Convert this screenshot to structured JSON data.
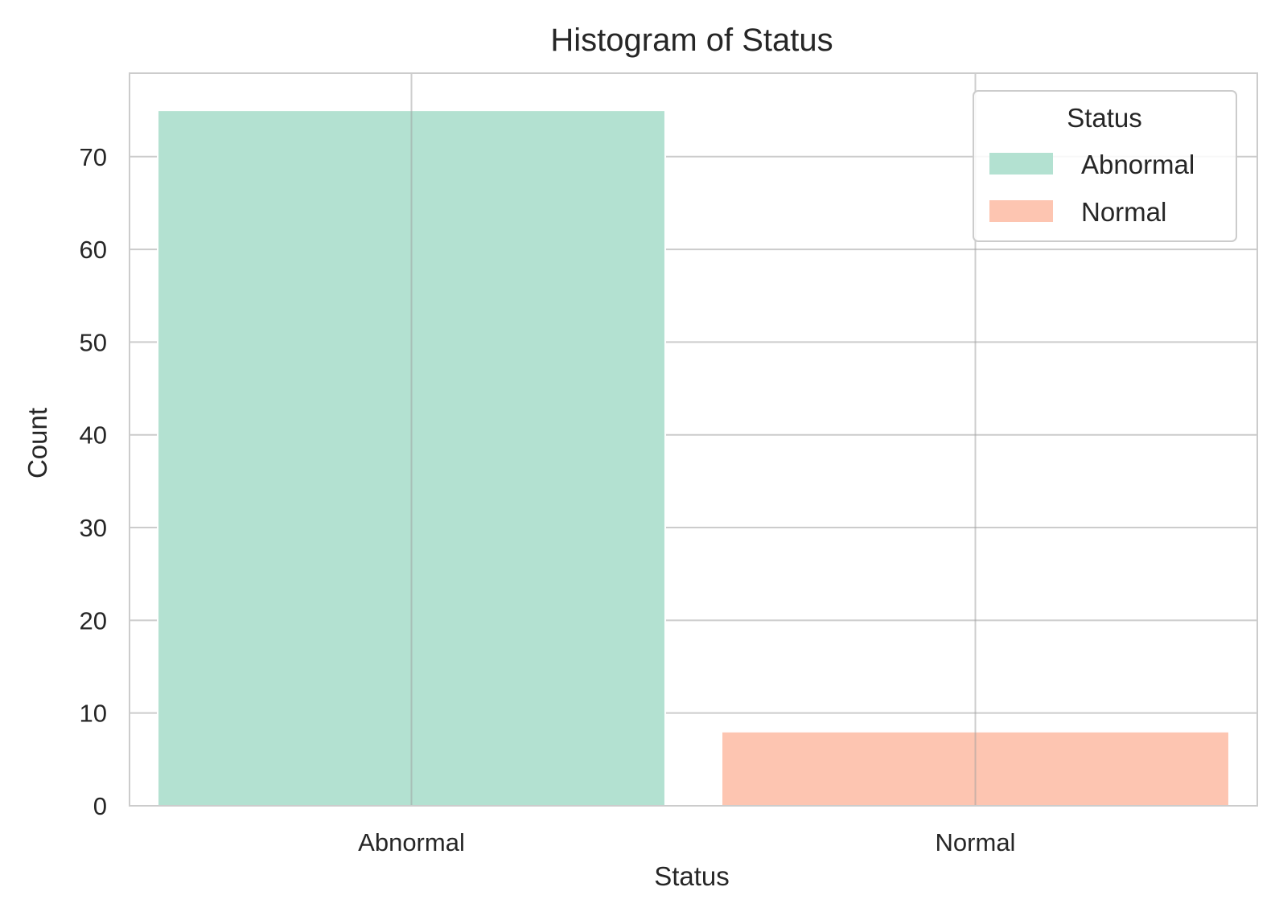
{
  "chart_data": {
    "type": "bar",
    "title": "Histogram of Status",
    "xlabel": "Status",
    "ylabel": "Count",
    "categories": [
      "Abnormal",
      "Normal"
    ],
    "values": [
      75,
      8
    ],
    "ylim": [
      0,
      79
    ],
    "yticks": [
      0,
      10,
      20,
      30,
      40,
      50,
      60,
      70
    ],
    "grid": true,
    "colors": [
      "#b3e1d1",
      "#fdc5b1"
    ],
    "legend": {
      "title": "Status",
      "position": "top-right",
      "entries": [
        "Abnormal",
        "Normal"
      ]
    }
  }
}
